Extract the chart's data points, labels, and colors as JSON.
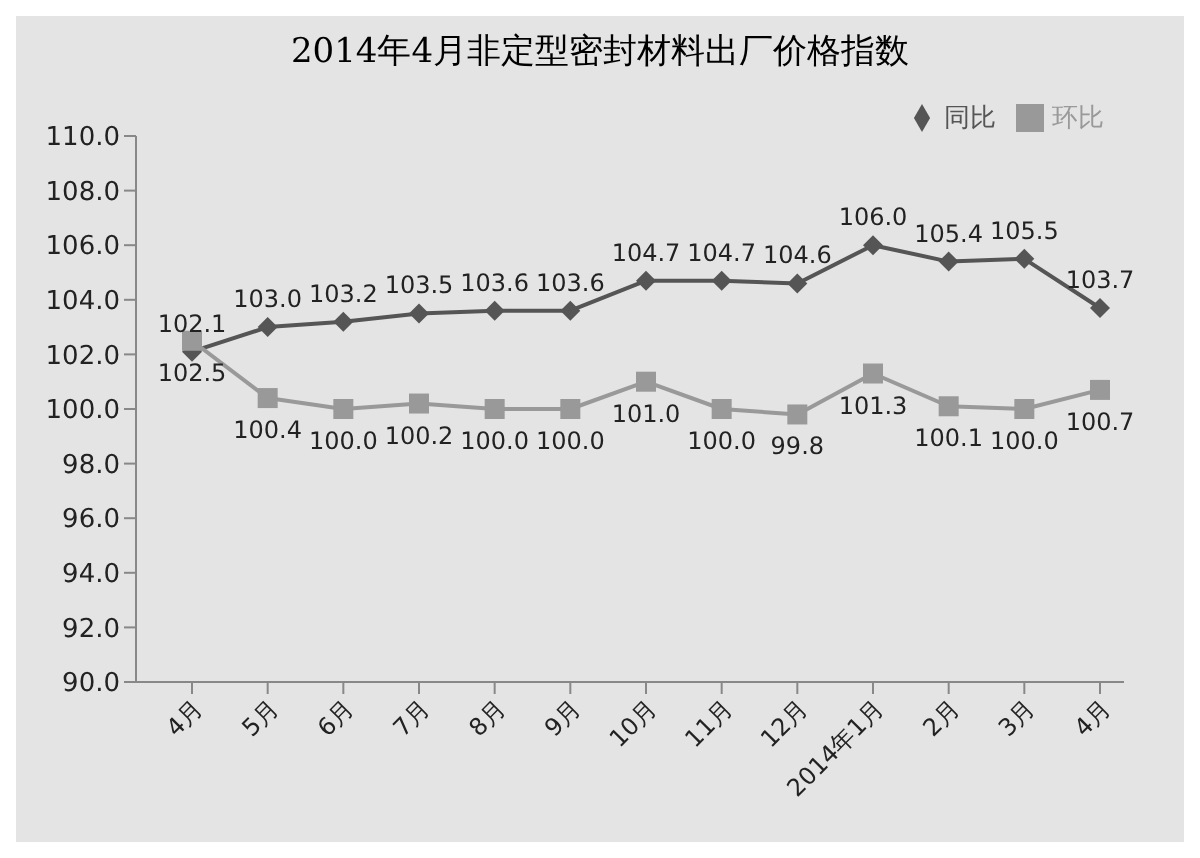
{
  "chart_data": {
    "type": "line",
    "title": "2014年4月非定型密封材料出厂价格指数",
    "categories": [
      "4月",
      "5月",
      "6月",
      "7月",
      "8月",
      "9月",
      "10月",
      "11月",
      "12月",
      "2014年1月",
      "2月",
      "3月",
      "4月"
    ],
    "series": [
      {
        "name": "同比",
        "color": "#555555",
        "marker": "diamond",
        "values": [
          102.1,
          103.0,
          103.2,
          103.5,
          103.6,
          103.6,
          104.7,
          104.7,
          104.6,
          106.0,
          105.4,
          105.5,
          103.7
        ],
        "value_labels": [
          "102.1",
          "103.0",
          "103.2",
          "103.5",
          "103.6",
          "103.6",
          "104.7",
          "104.7",
          "104.6",
          "106.0",
          "105.4",
          "105.5",
          "103.7"
        ]
      },
      {
        "name": "环比",
        "color": "#999999",
        "marker": "square",
        "values": [
          102.5,
          100.4,
          100.0,
          100.2,
          100.0,
          100.0,
          101.0,
          100.0,
          99.8,
          101.3,
          100.1,
          100.0,
          100.7
        ],
        "value_labels": [
          "102.5",
          "100.4",
          "100.0",
          "100.2",
          "100.0",
          "100.0",
          "101.0",
          "100.0",
          "99.8",
          "101.3",
          "100.1",
          "100.0",
          "100.7"
        ]
      }
    ],
    "ylim": [
      90,
      110
    ],
    "yticks": [
      {
        "value": 90,
        "label": "90.0"
      },
      {
        "value": 92,
        "label": "92.0"
      },
      {
        "value": 94,
        "label": "94.0"
      },
      {
        "value": 96,
        "label": "96.0"
      },
      {
        "value": 98,
        "label": "98.0"
      },
      {
        "value": 100,
        "label": "100.0"
      },
      {
        "value": 102,
        "label": "102.0"
      },
      {
        "value": 104,
        "label": "104.0"
      },
      {
        "value": 106,
        "label": "106.0"
      },
      {
        "value": 108,
        "label": "108.0"
      },
      {
        "value": 110,
        "label": "110.0"
      }
    ],
    "grid": false,
    "legend": "top right",
    "line_style": "solid"
  }
}
